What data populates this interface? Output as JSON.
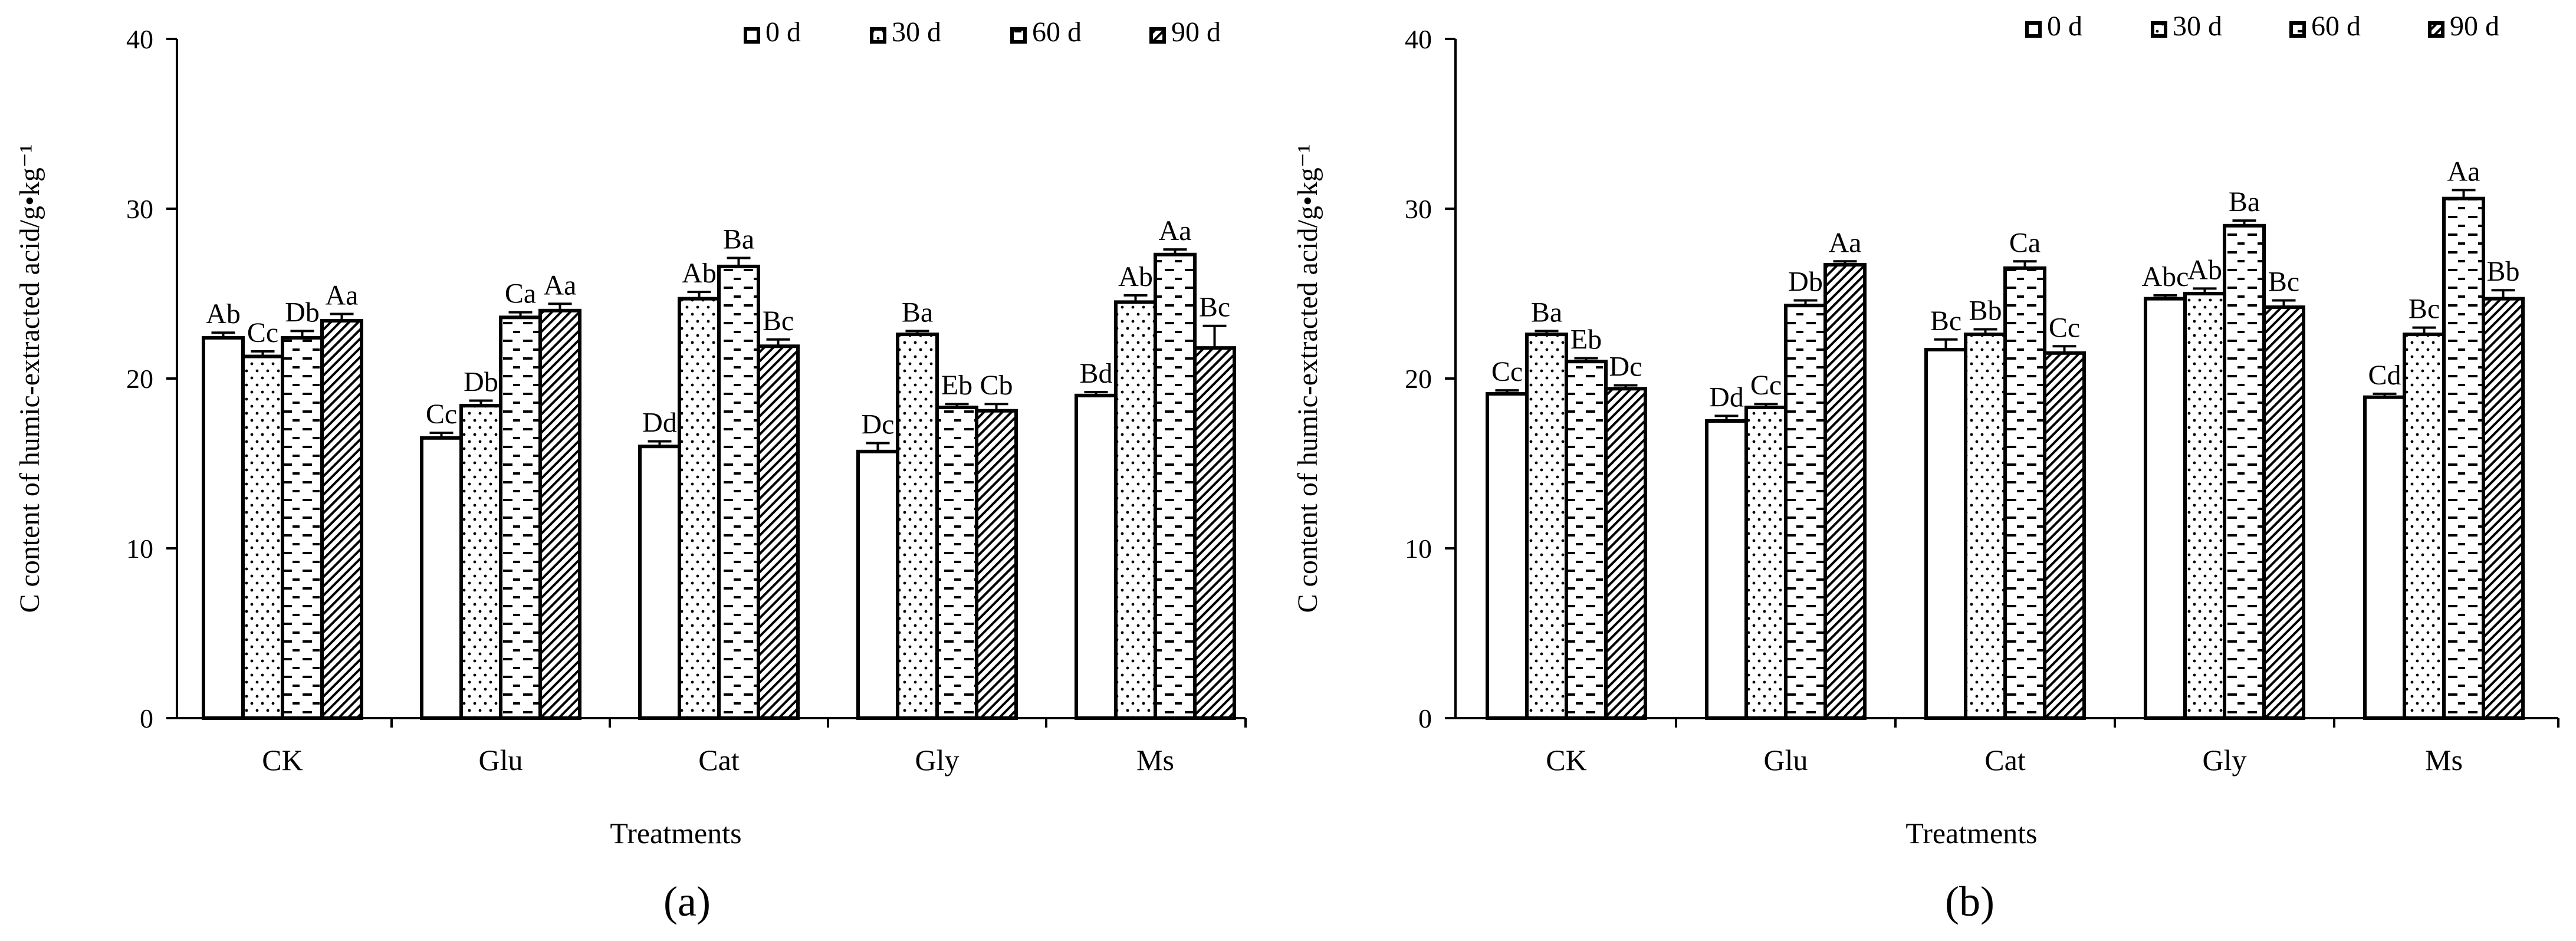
{
  "chart_data": [
    {
      "type": "bar",
      "panel_label": "(a)",
      "categories": [
        "CK",
        "Glu",
        "Cat",
        "Gly",
        "Ms"
      ],
      "series": [
        {
          "name": "0 d",
          "pattern": "white",
          "values": [
            22.4,
            16.5,
            16.0,
            15.7,
            19.0
          ],
          "errors": [
            0.3,
            0.3,
            0.3,
            0.5,
            0.2
          ],
          "letters": [
            "Ab",
            "Cc",
            "Dd",
            "Dc",
            "Bd"
          ]
        },
        {
          "name": "30 d",
          "pattern": "dots",
          "values": [
            21.3,
            18.4,
            24.7,
            22.6,
            24.5
          ],
          "errors": [
            0.3,
            0.3,
            0.4,
            0.2,
            0.4
          ],
          "letters": [
            "Cc",
            "Db",
            "Ab",
            "Ba",
            "Ab"
          ]
        },
        {
          "name": "60 d",
          "pattern": "dashes",
          "values": [
            22.4,
            23.6,
            26.6,
            18.3,
            27.3
          ],
          "errors": [
            0.4,
            0.3,
            0.5,
            0.2,
            0.3
          ],
          "letters": [
            "Db",
            "Ca",
            "Ba",
            "Eb",
            "Aa"
          ]
        },
        {
          "name": "90 d",
          "pattern": "hatch",
          "values": [
            23.4,
            24.0,
            21.9,
            18.1,
            21.8
          ],
          "errors": [
            0.4,
            0.4,
            0.4,
            0.4,
            1.3
          ],
          "letters": [
            "Aa",
            "Aa",
            "Bc",
            "Cb",
            "Bc"
          ]
        }
      ],
      "ylabel": "C content of humic-extracted acid/g•kg⁻¹",
      "xlabel": "Treatments",
      "ylim": [
        0,
        40
      ],
      "yticks": [
        "0",
        "10",
        "20",
        "30",
        "40"
      ],
      "legend_position": "top-right"
    },
    {
      "type": "bar",
      "panel_label": "(b)",
      "categories": [
        "CK",
        "Glu",
        "Cat",
        "Gly",
        "Ms"
      ],
      "series": [
        {
          "name": "0 d",
          "pattern": "white",
          "values": [
            19.1,
            17.5,
            21.7,
            24.7,
            18.9
          ],
          "errors": [
            0.2,
            0.3,
            0.6,
            0.2,
            0.2
          ],
          "letters": [
            "Cc",
            "Dd",
            "Bc",
            "Abc",
            "Cd"
          ]
        },
        {
          "name": "30 d",
          "pattern": "dots",
          "values": [
            22.6,
            18.3,
            22.6,
            25.0,
            22.6
          ],
          "errors": [
            0.2,
            0.2,
            0.3,
            0.3,
            0.4
          ],
          "letters": [
            "Ba",
            "Cc",
            "Bb",
            "Ab",
            "Bc"
          ]
        },
        {
          "name": "60 d",
          "pattern": "dashes",
          "values": [
            21.0,
            24.3,
            26.5,
            29.0,
            30.6
          ],
          "errors": [
            0.2,
            0.3,
            0.4,
            0.3,
            0.5
          ],
          "letters": [
            "Eb",
            "Db",
            "Ca",
            "Ba",
            "Aa"
          ]
        },
        {
          "name": "90 d",
          "pattern": "hatch",
          "values": [
            19.4,
            26.7,
            21.5,
            24.2,
            24.7
          ],
          "errors": [
            0.2,
            0.2,
            0.4,
            0.4,
            0.5
          ],
          "letters": [
            "Dc",
            "Aa",
            "Cc",
            "Bc",
            "Bb"
          ]
        }
      ],
      "ylabel": "C content of humic-extracted acid/g•kg⁻¹",
      "xlabel": "Treatments",
      "ylim": [
        0,
        40
      ],
      "yticks": [
        "0",
        "10",
        "20",
        "30",
        "40"
      ],
      "legend_position": "top-right"
    }
  ]
}
